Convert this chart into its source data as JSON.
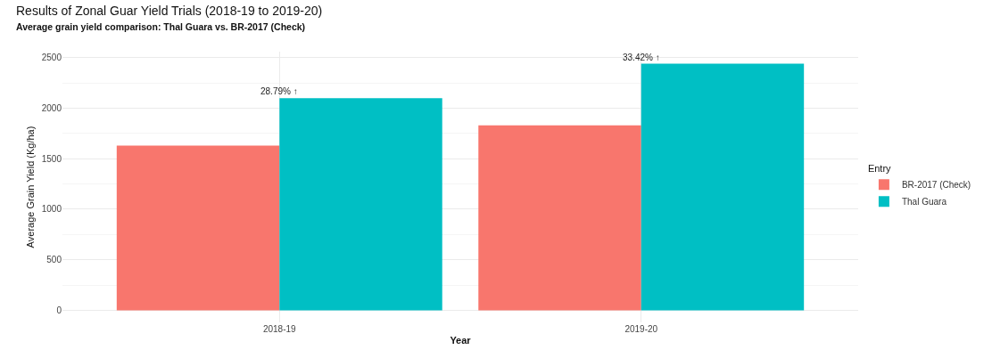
{
  "chart_data": {
    "type": "bar",
    "title": "Results of Zonal Guar Yield Trials (2018-19 to 2019-20)",
    "subtitle": "Average grain yield comparison: Thal Guara vs. BR-2017 (Check)",
    "xlabel": "Year",
    "ylabel": "Average Grain Yield (Kg/ha)",
    "legend_title": "Entry",
    "categories": [
      "2018-19",
      "2019-20"
    ],
    "series": [
      {
        "name": "BR-2017 (Check)",
        "color": "#f8766d",
        "values": [
          1630,
          1830
        ]
      },
      {
        "name": "Thal Guara",
        "color": "#00bfc4",
        "values": [
          2100,
          2440
        ]
      }
    ],
    "ylim": [
      -120,
      2560
    ],
    "yticks": [
      0,
      500,
      1000,
      1500,
      2000,
      2500
    ],
    "grid": true,
    "legend": "right",
    "annotations": [
      {
        "text": "28.79% ↑",
        "x": "2018-19",
        "y": 2100
      },
      {
        "text": "33.42% ↑",
        "x": "2019-20",
        "y": 2440
      }
    ]
  }
}
